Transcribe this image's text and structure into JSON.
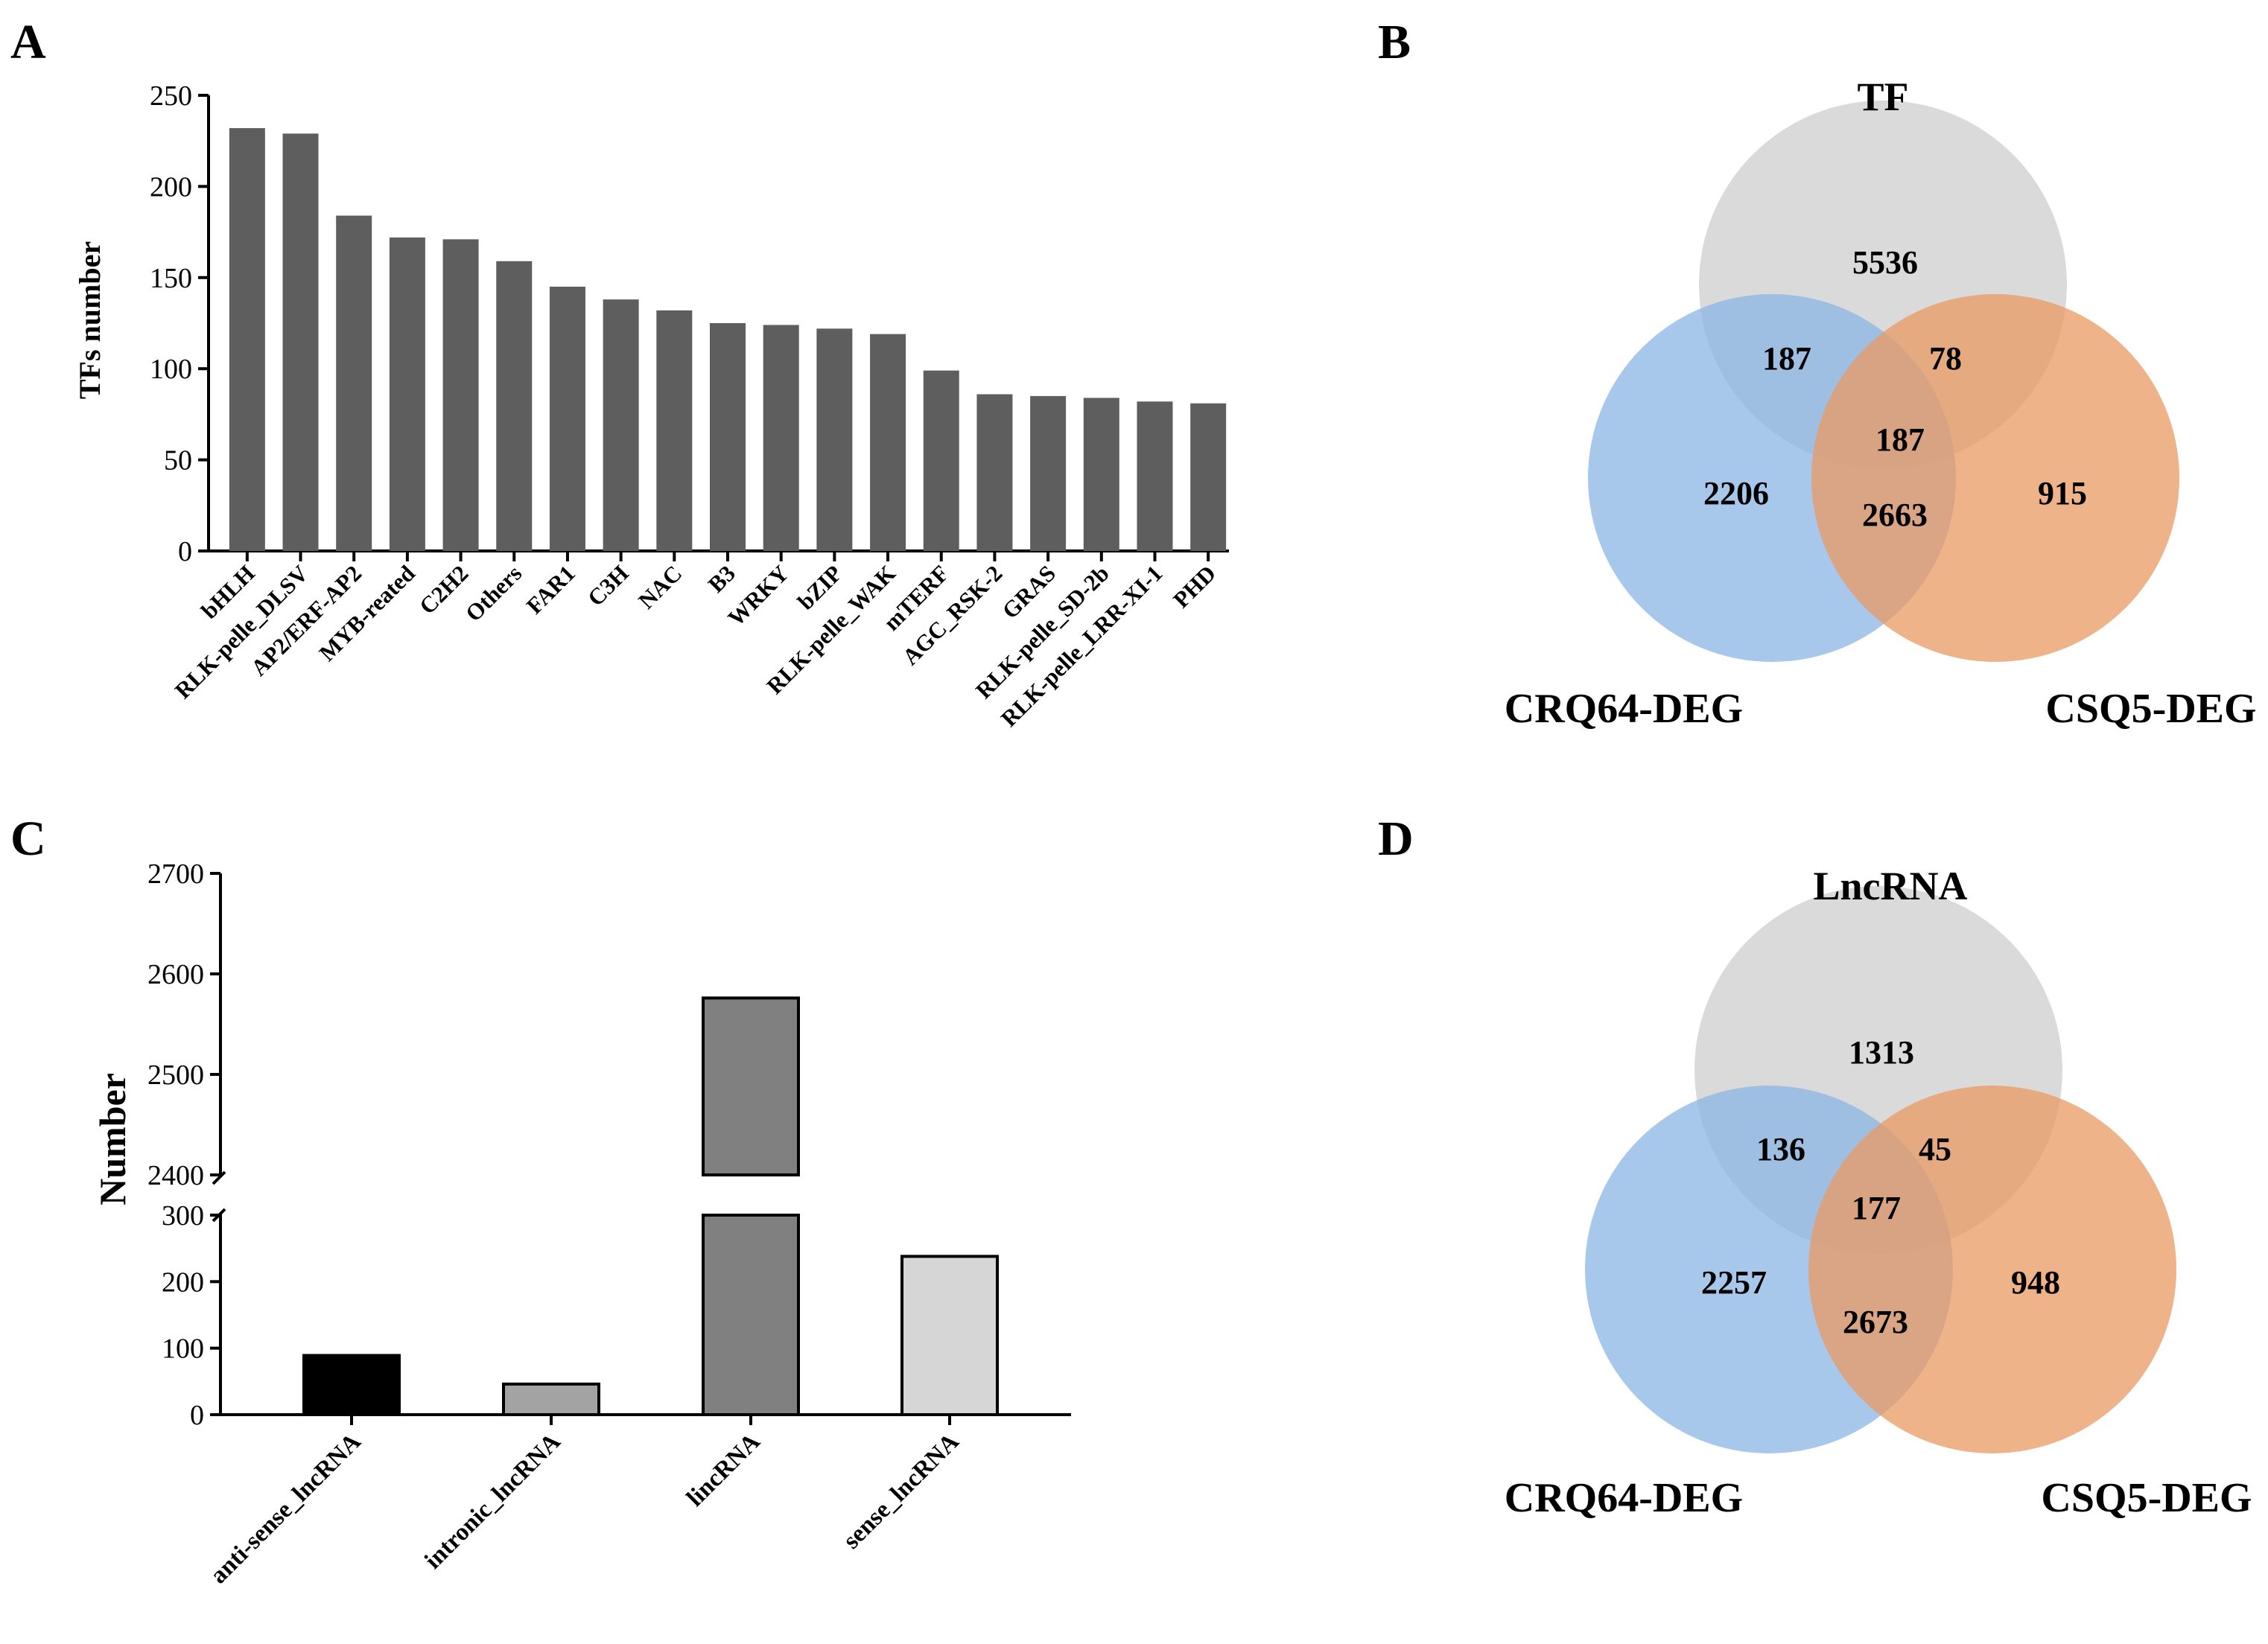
{
  "panels": {
    "A": "A",
    "B": "B",
    "C": "C",
    "D": "D"
  },
  "chart_data": [
    {
      "panel": "A",
      "type": "bar",
      "ylabel": "TFs number",
      "xlabel": "",
      "ylim": [
        0,
        250
      ],
      "yticks": [
        0,
        50,
        100,
        150,
        200,
        250
      ],
      "categories": [
        "bHLH",
        "RLK-pelle_DLSV",
        "AP2/ERF-AP2",
        "MYB-reated",
        "C2H2",
        "Others",
        "FAR1",
        "C3H",
        "NAC",
        "B3",
        "WRKY",
        "bZIP",
        "RLK-pelle_WAK",
        "mTERF",
        "AGC_RSK-2",
        "GRAS",
        "RLK-pelle_SD-2b",
        "RLK-pelle_LRR-XI-1",
        "PHD"
      ],
      "values": [
        232,
        229,
        184,
        172,
        171,
        159,
        145,
        138,
        132,
        125,
        124,
        122,
        119,
        99,
        86,
        85,
        84,
        82,
        81
      ],
      "color": "#5e5e5e"
    },
    {
      "panel": "B",
      "type": "venn",
      "sets": [
        "TF",
        "CRQ64-DEG",
        "CSQ5-DEG"
      ],
      "regions": {
        "tf_only": 5536,
        "tf_crq": 187,
        "tf_csq": 78,
        "all": 187,
        "crq_only": 2206,
        "crq_csq": 2663,
        "csq_only": 915
      },
      "colors": {
        "top": "#d3d3d3",
        "left": "#98bde6",
        "right": "#eda776"
      }
    },
    {
      "panel": "C",
      "type": "bar",
      "ylabel": "Number",
      "xlabel": "",
      "axis_break": true,
      "lower_ylim": [
        0,
        300
      ],
      "upper_ylim": [
        2400,
        2700
      ],
      "lower_yticks": [
        0,
        100,
        200,
        300
      ],
      "upper_yticks": [
        2400,
        2500,
        2600,
        2700
      ],
      "categories": [
        "anti-sense_lncRNA",
        "intronic_lncRNA",
        "lincRNA",
        "sense_lncRNA"
      ],
      "values": [
        89,
        46,
        2576,
        238
      ],
      "colors": [
        "#000000",
        "#a3a3a3",
        "#808080",
        "#d6d6d6"
      ]
    },
    {
      "panel": "D",
      "type": "venn",
      "sets": [
        "LncRNA",
        "CRQ64-DEG",
        "CSQ5-DEG"
      ],
      "regions": {
        "tf_only": 1313,
        "tf_crq": 136,
        "tf_csq": 45,
        "all": 177,
        "crq_only": 2257,
        "crq_csq": 2673,
        "csq_only": 948
      },
      "colors": {
        "top": "#d3d3d3",
        "left": "#98bde6",
        "right": "#eda776"
      }
    }
  ]
}
